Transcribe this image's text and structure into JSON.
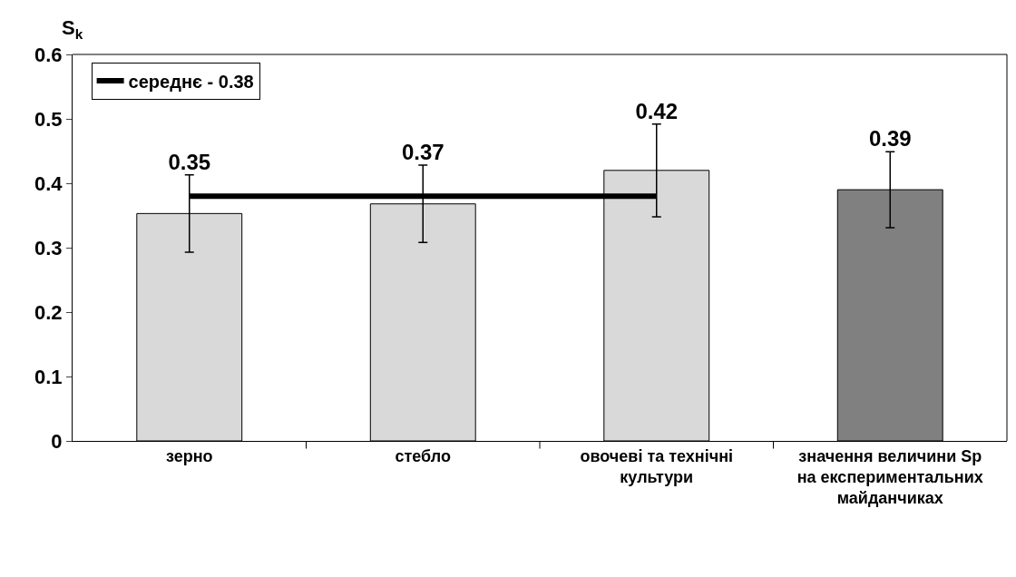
{
  "chart_data": {
    "type": "bar",
    "ylabel": "S$_{k}$",
    "categories": [
      "зерно",
      "стебло",
      "овочеві та технічні культури",
      "значення величини Sp на експериментальних майданчиках"
    ],
    "series": [
      {
        "colors": [
          "#d9d9d9",
          "#d9d9d9",
          "#d9d9d9",
          "#808080"
        ],
        "values": [
          0.353,
          0.368,
          0.42,
          0.39
        ],
        "errors": [
          0.06,
          0.06,
          0.072,
          0.059
        ],
        "value_labels": [
          "0.35",
          "0.37",
          "0.42",
          "0.39"
        ]
      },
      {
        "type": "line",
        "name": "середнє - 0.38",
        "color": "#000000",
        "values": [
          0.38,
          0.38,
          0.38,
          null
        ]
      }
    ],
    "ylim": [
      0,
      0.6
    ],
    "yticks": [
      {
        "value": 0,
        "label": "0"
      },
      0.1,
      0.2,
      0.3,
      0.4,
      0.5,
      0.6
    ],
    "grid": false,
    "legend": "top left",
    "marker": "none",
    "line_style": "solid"
  }
}
